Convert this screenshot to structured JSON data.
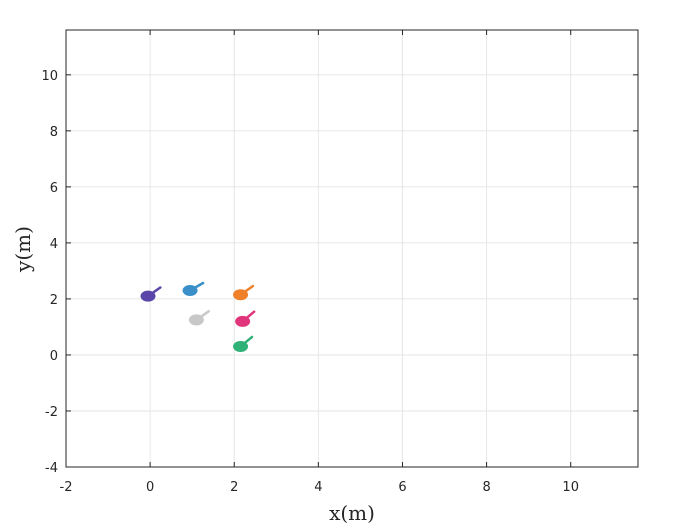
{
  "chart_data": {
    "type": "scatter",
    "title": "",
    "xlabel": "x(m)",
    "ylabel": "y(m)",
    "xlim": [
      -2,
      11.6
    ],
    "ylim": [
      -4,
      11.6
    ],
    "xticks": [
      -2,
      0,
      2,
      4,
      6,
      8,
      10
    ],
    "yticks": [
      -4,
      -2,
      0,
      2,
      4,
      6,
      8,
      10
    ],
    "xtick_labels": [
      "-2",
      "0",
      "2",
      "4",
      "6",
      "8",
      "10"
    ],
    "ytick_labels": [
      "-4",
      "-2",
      "0",
      "2",
      "4",
      "6",
      "8",
      "10"
    ],
    "grid": true,
    "marker": "body-with-heading-line",
    "points": [
      {
        "x": -0.05,
        "y": 2.1,
        "heading_deg": 35,
        "color": "#5a45a8"
      },
      {
        "x": 0.95,
        "y": 2.3,
        "heading_deg": 30,
        "color": "#3a8fc8"
      },
      {
        "x": 2.15,
        "y": 2.15,
        "heading_deg": 35,
        "color": "#f07f2a"
      },
      {
        "x": 1.1,
        "y": 1.25,
        "heading_deg": 35,
        "color": "#c8c8c8"
      },
      {
        "x": 2.2,
        "y": 1.2,
        "heading_deg": 40,
        "color": "#e0357a"
      },
      {
        "x": 2.15,
        "y": 0.3,
        "heading_deg": 40,
        "color": "#2fb178"
      }
    ]
  }
}
